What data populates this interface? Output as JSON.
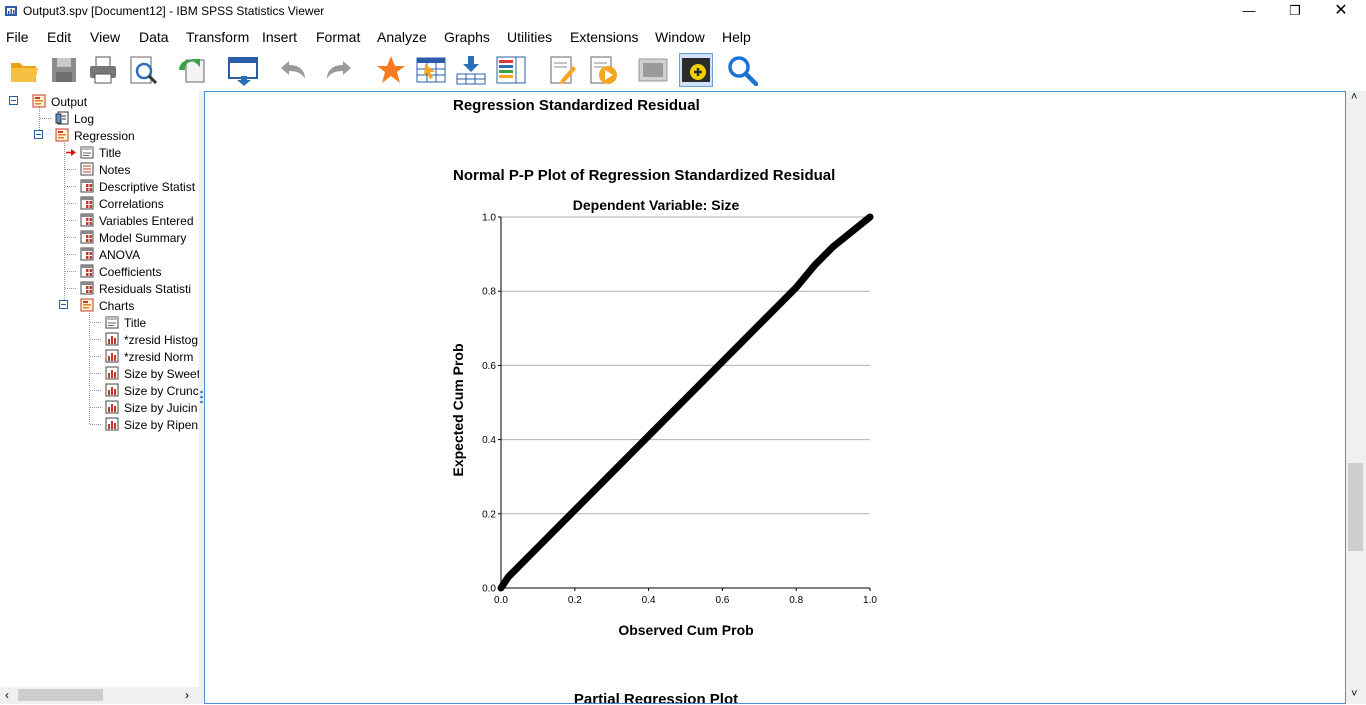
{
  "window": {
    "title": "Output3.spv [Document12] - IBM SPSS Statistics Viewer",
    "controls": [
      "minimize",
      "restore",
      "close"
    ]
  },
  "menu": [
    "File",
    "Edit",
    "View",
    "Data",
    "Transform",
    "Insert",
    "Format",
    "Analyze",
    "Graphs",
    "Utilities",
    "Extensions",
    "Window",
    "Help"
  ],
  "toolbar": [
    "open-icon",
    "save-icon",
    "print-icon",
    "print-preview-icon",
    "export-icon",
    "goto-data-icon",
    "undo-icon",
    "redo-icon",
    "star-icon",
    "select-table-icon",
    "insert-case-icon",
    "variables-icon",
    "create-edit-icon",
    "run-script-icon",
    "hide-icon",
    "designate-window-icon",
    "find-icon"
  ],
  "tree": [
    {
      "label": "Output",
      "level": 0,
      "icon": "output-book-icon"
    },
    {
      "label": "Log",
      "level": 1,
      "icon": "log-icon"
    },
    {
      "label": "Regression",
      "level": 1,
      "icon": "book-icon"
    },
    {
      "label": "Title",
      "level": 2,
      "icon": "title-icon"
    },
    {
      "label": "Notes",
      "level": 2,
      "icon": "notes-icon"
    },
    {
      "label": "Descriptive Statist",
      "level": 2,
      "icon": "table-icon"
    },
    {
      "label": "Correlations",
      "level": 2,
      "icon": "table-icon"
    },
    {
      "label": "Variables Entered",
      "level": 2,
      "icon": "table-icon"
    },
    {
      "label": "Model Summary",
      "level": 2,
      "icon": "table-icon"
    },
    {
      "label": "ANOVA",
      "level": 2,
      "icon": "table-icon"
    },
    {
      "label": "Coefficients",
      "level": 2,
      "icon": "table-icon"
    },
    {
      "label": "Residuals Statisti",
      "level": 2,
      "icon": "table-icon"
    },
    {
      "label": "Charts",
      "level": 2,
      "icon": "book-icon"
    },
    {
      "label": "Title",
      "level": 3,
      "icon": "title-icon"
    },
    {
      "label": "*zresid Histog",
      "level": 3,
      "icon": "chart-icon"
    },
    {
      "label": "*zresid Norm",
      "level": 3,
      "icon": "chart-icon"
    },
    {
      "label": "Size by Sweet",
      "level": 3,
      "icon": "chart-icon"
    },
    {
      "label": "Size by Crunc",
      "level": 3,
      "icon": "chart-icon"
    },
    {
      "label": "Size by Juicin",
      "level": 3,
      "icon": "chart-icon"
    },
    {
      "label": "Size by Ripen",
      "level": 3,
      "icon": "chart-icon"
    }
  ],
  "content": {
    "top_heading": "Regression Standardized Residual",
    "bottom_heading": "Partial Regression Plot"
  },
  "chart_data": {
    "type": "line",
    "title": "Normal P-P Plot of Regression Standardized Residual",
    "subtitle": "Dependent Variable: Size",
    "xlabel": "Observed Cum Prob",
    "ylabel": "Expected Cum Prob",
    "xlim": [
      0.0,
      1.0
    ],
    "ylim": [
      0.0,
      1.0
    ],
    "xticks": [
      "0.0",
      "0.2",
      "0.4",
      "0.6",
      "0.8",
      "1.0"
    ],
    "yticks": [
      "0.0",
      "0.2",
      "0.4",
      "0.6",
      "0.8",
      "1.0"
    ],
    "grid": "horizontal",
    "series": [
      {
        "x": [
          0.0,
          0.02,
          0.05,
          0.1,
          0.15,
          0.2,
          0.25,
          0.3,
          0.35,
          0.4,
          0.45,
          0.5,
          0.55,
          0.6,
          0.65,
          0.7,
          0.75,
          0.8,
          0.85,
          0.9,
          0.95,
          1.0
        ],
        "y": [
          0.0,
          0.03,
          0.06,
          0.11,
          0.16,
          0.21,
          0.26,
          0.31,
          0.36,
          0.41,
          0.46,
          0.51,
          0.56,
          0.61,
          0.66,
          0.71,
          0.76,
          0.81,
          0.87,
          0.92,
          0.96,
          1.0
        ],
        "color": "#000000"
      }
    ]
  }
}
